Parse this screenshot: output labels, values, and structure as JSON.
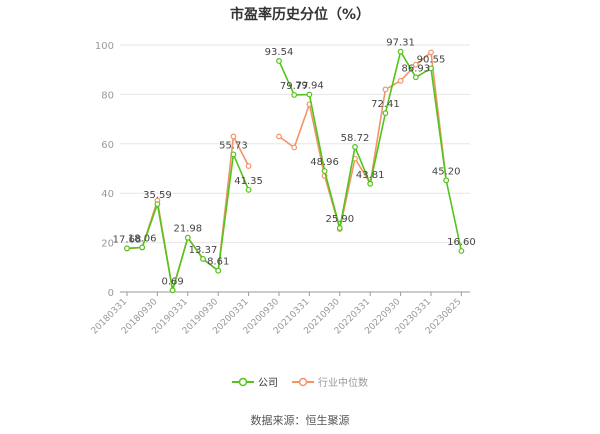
{
  "title": "市盈率历史分位（%）",
  "legend": {
    "company": "公司",
    "industry": "行业中位数"
  },
  "source": "数据来源：恒生聚源",
  "colors": {
    "company": "#52c41a",
    "industry": "#f0956a",
    "grid": "#e6e6e6",
    "axis": "#999999"
  },
  "chart_data": {
    "type": "line",
    "title": "市盈率历史分位（%）",
    "xlabel": "",
    "ylabel": "",
    "ylim": [
      0,
      100
    ],
    "yticks": [
      0,
      20,
      40,
      60,
      80,
      100
    ],
    "grid": true,
    "legend_position": "bottom",
    "x_tick_labels": [
      "20180331",
      "20180930",
      "20190331",
      "20190930",
      "20200331",
      "20200930",
      "20210331",
      "20210930",
      "20220331",
      "20220930",
      "20230331",
      "20230825"
    ],
    "x": [
      "20180331",
      "20180630",
      "20180930",
      "20181231",
      "20190331",
      "20190630",
      "20190930",
      "20191231",
      "20200331",
      "20200630",
      "20200930",
      "20201231",
      "20210331",
      "20210630",
      "20210930",
      "20211231",
      "20220331",
      "20220630",
      "20220930",
      "20221231",
      "20230331",
      "20230630",
      "20230825"
    ],
    "series": [
      {
        "name": "公司",
        "values": [
          17.68,
          18.06,
          35.59,
          0.69,
          21.98,
          13.37,
          8.61,
          55.73,
          41.35,
          null,
          93.54,
          79.77,
          79.94,
          48.96,
          25.9,
          58.72,
          43.81,
          72.41,
          97.31,
          86.93,
          90.55,
          45.2,
          16.6
        ],
        "labels": [
          "17.68",
          "18.06",
          "35.59",
          "0.69",
          "21.98",
          "13.37",
          "8.61",
          "55.73",
          "41.35",
          "",
          "93.54",
          "79.77",
          "79.94",
          "48.96",
          "25.90",
          "58.72",
          "43.81",
          "72.41",
          "97.31",
          "86.93",
          "90.55",
          "45.20",
          "16.60"
        ]
      },
      {
        "name": "行业中位数",
        "values": [
          17.6,
          18.0,
          37.0,
          0.7,
          22.0,
          13.4,
          8.6,
          63.0,
          51.0,
          null,
          63.0,
          58.5,
          76.0,
          47.0,
          25.5,
          54.0,
          44.0,
          82.0,
          85.5,
          92.0,
          97.0,
          45.2,
          null
        ]
      }
    ]
  }
}
